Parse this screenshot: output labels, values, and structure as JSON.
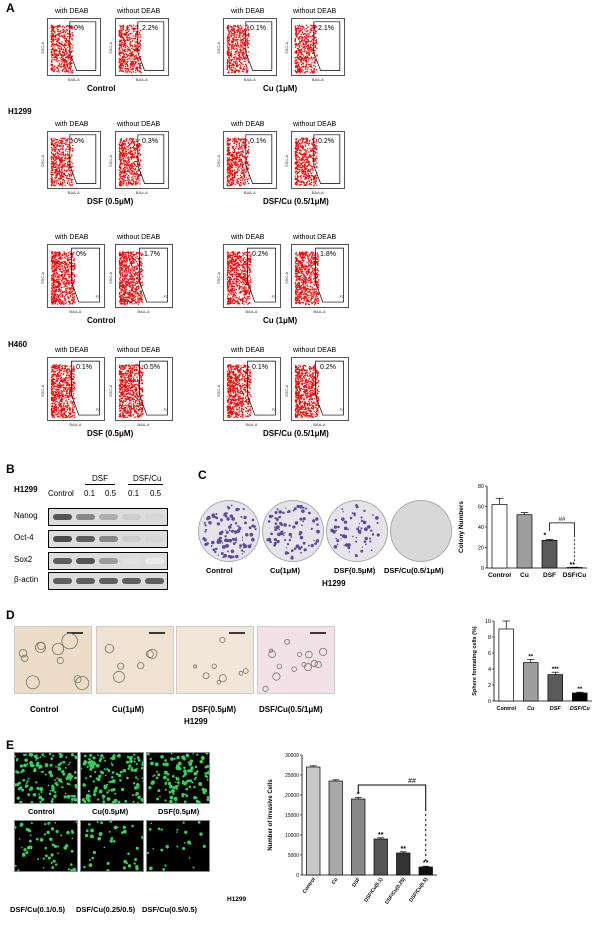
{
  "panels": {
    "A": "A",
    "B": "B",
    "C": "C",
    "D": "D",
    "E": "E"
  },
  "panelA": {
    "col_titles": {
      "with": "with DEAB",
      "without": "without DEAB"
    },
    "axis": {
      "y": "SSC-A",
      "x": "BAA-A"
    },
    "gate_label": "P2",
    "h1299_label": "H1299",
    "h460_label": "H460",
    "h1299": [
      {
        "condition": "Control",
        "with": "0%",
        "without": "2.2%"
      },
      {
        "condition": "Cu (1μM)",
        "with": "0.1%",
        "without": "2.1%"
      },
      {
        "condition": "DSF (0.5μM)",
        "with": "0%",
        "without": "0.3%"
      },
      {
        "condition": "DSF/Cu (0.5/1μM)",
        "with": "0.1%",
        "without": "0.2%"
      }
    ],
    "h460": [
      {
        "condition": "Control",
        "with": "0%",
        "without": "1.7%"
      },
      {
        "condition": "Cu (1μM)",
        "with": "0.2%",
        "without": "1.8%"
      },
      {
        "condition": "DSF (0.5μM)",
        "with": "0.1%",
        "without": "0.5%"
      },
      {
        "condition": "DSF/Cu (0.5/1μM)",
        "with": "0.1%",
        "without": "0.2%"
      }
    ]
  },
  "panelB": {
    "cell_line": "H1299",
    "groups": [
      "DSF",
      "DSF/Cu"
    ],
    "lanes": [
      "Control",
      "0.1",
      "0.5",
      "0.1",
      "0.5"
    ],
    "proteins": [
      "Nanog",
      "Oct-4",
      "Sox2",
      "β-actin"
    ]
  },
  "panelC": {
    "cell_line": "H1299",
    "dishes": [
      "Control",
      "Cu(1μM)",
      "DSF(0.5μM)",
      "DSF/Cu(0.5/1μM)"
    ],
    "sig": [
      "*",
      "**",
      "##"
    ]
  },
  "panelD": {
    "cell_line": "H1299",
    "images": [
      "Control",
      "Cu(1μM)",
      "DSF(0.5μM)",
      "DSF/Cu(0.5/1μM)"
    ],
    "sig": [
      "**",
      "***",
      "**"
    ]
  },
  "panelE": {
    "cell_line": "H1299",
    "images_top": [
      "Control",
      "Cu(0.5μM)",
      "DSF(0.5μM)"
    ],
    "images_bottom": [
      "DSF/Cu(0.1/0.5)",
      "DSF/Cu(0.25/0.5)",
      "DSF/Cu(0.5/0.5)"
    ],
    "sig": [
      "*",
      "**",
      "**",
      "**",
      "##"
    ]
  },
  "chart_data": [
    {
      "type": "bar",
      "categories": [
        "Control",
        "Cu",
        "DSF",
        "DSF/Cu"
      ],
      "values": [
        62,
        52,
        27,
        0.5
      ],
      "errors": [
        6,
        2,
        1,
        0.3
      ],
      "colors": [
        "#ffffff",
        "#9e9e9e",
        "#5a5a5a",
        "#000000"
      ],
      "ylabel": "Colony Numbers",
      "ylim": [
        0,
        80
      ],
      "yticks": [
        0,
        20,
        40,
        60,
        80
      ]
    },
    {
      "type": "bar",
      "categories": [
        "Control",
        "Cu",
        "DSF",
        "DSF/Cu"
      ],
      "values": [
        9,
        4.8,
        3.3,
        1
      ],
      "errors": [
        1,
        0.4,
        0.3,
        0.1
      ],
      "colors": [
        "#ffffff",
        "#9e9e9e",
        "#5a5a5a",
        "#000000"
      ],
      "ylabel": "Sphere formating cells (%)",
      "ylim": [
        0,
        10
      ],
      "yticks": [
        0,
        2,
        4,
        6,
        8,
        10
      ]
    },
    {
      "type": "bar",
      "categories": [
        "Control",
        "Cu",
        "DSF",
        "DSF/Cu(0.1)",
        "DSF/Cu(0.25)",
        "DSF/Cu(0.5)"
      ],
      "values": [
        27000,
        23500,
        19000,
        9000,
        5500,
        2000
      ],
      "errors": [
        300,
        300,
        400,
        300,
        300,
        200
      ],
      "colors": [
        "#c8c8c8",
        "#a8a8a8",
        "#888888",
        "#555555",
        "#333333",
        "#111111"
      ],
      "ylabel": "Number of Invasive Cells",
      "ylim": [
        0,
        30000
      ],
      "yticks": [
        0,
        5000,
        10000,
        15000,
        20000,
        25000,
        30000
      ]
    }
  ]
}
